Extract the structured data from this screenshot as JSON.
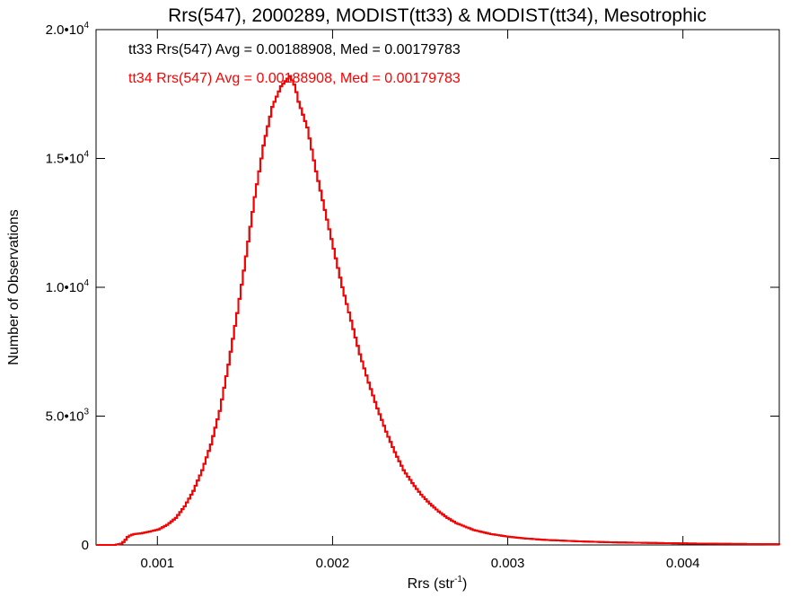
{
  "chart_data": {
    "type": "histogram",
    "title": "Rrs(547), 2000289, MODIST(tt33) & MODIST(tt34), Mesotrophic",
    "xlabel": "Rrs (str",
    "xlabel_sup": "-1",
    "xlabel_suffix": ")",
    "ylabel": "Number of Observations",
    "xlim": [
      0.00065,
      0.00455
    ],
    "ylim": [
      0,
      20000
    ],
    "x_ticks": [
      {
        "value": 0.001,
        "label": "0.001"
      },
      {
        "value": 0.002,
        "label": "0.002"
      },
      {
        "value": 0.003,
        "label": "0.003"
      },
      {
        "value": 0.004,
        "label": "0.004"
      }
    ],
    "y_ticks": [
      {
        "value": 0,
        "label": "0",
        "sup": ""
      },
      {
        "value": 5000,
        "label": "5.0•10",
        "sup": "3"
      },
      {
        "value": 10000,
        "label": "1.0•10",
        "sup": "4"
      },
      {
        "value": 15000,
        "label": "1.5•10",
        "sup": "4"
      },
      {
        "value": 20000,
        "label": "2.0•10",
        "sup": "4"
      }
    ],
    "annotations": [
      {
        "text": "tt33 Rrs(547) Avg = 0.00188908, Med = 0.00179783",
        "color": "#000000"
      },
      {
        "text": "tt34 Rrs(547) Avg = 0.00188908, Med = 0.00179783",
        "color": "#ff0000"
      }
    ],
    "series": [
      {
        "name": "tt33",
        "color": "#000000",
        "points": [
          [
            0.00065,
            0
          ],
          [
            0.00075,
            0
          ],
          [
            0.00079,
            50
          ],
          [
            0.00081,
            180
          ],
          [
            0.00083,
            350
          ],
          [
            0.00086,
            420
          ],
          [
            0.0009,
            450
          ],
          [
            0.00095,
            520
          ],
          [
            0.001,
            600
          ],
          [
            0.00105,
            780
          ],
          [
            0.0011,
            1050
          ],
          [
            0.00115,
            1500
          ],
          [
            0.0012,
            2100
          ],
          [
            0.00125,
            2900
          ],
          [
            0.0013,
            3900
          ],
          [
            0.00135,
            5200
          ],
          [
            0.0014,
            7000
          ],
          [
            0.00145,
            9000
          ],
          [
            0.0015,
            11200
          ],
          [
            0.00155,
            13500
          ],
          [
            0.0016,
            15500
          ],
          [
            0.00165,
            17000
          ],
          [
            0.0017,
            17800
          ],
          [
            0.00175,
            18200
          ],
          [
            0.00178,
            17800
          ],
          [
            0.0018,
            17200
          ],
          [
            0.00185,
            16200
          ],
          [
            0.0019,
            14500
          ],
          [
            0.00195,
            13000
          ],
          [
            0.002,
            11500
          ],
          [
            0.00205,
            10000
          ],
          [
            0.0021,
            8700
          ],
          [
            0.00215,
            7400
          ],
          [
            0.0022,
            6300
          ],
          [
            0.00225,
            5300
          ],
          [
            0.0023,
            4400
          ],
          [
            0.00235,
            3600
          ],
          [
            0.0024,
            2900
          ],
          [
            0.00245,
            2400
          ],
          [
            0.0025,
            1950
          ],
          [
            0.00255,
            1600
          ],
          [
            0.0026,
            1300
          ],
          [
            0.00265,
            1050
          ],
          [
            0.0027,
            850
          ],
          [
            0.0028,
            580
          ],
          [
            0.0029,
            420
          ],
          [
            0.003,
            320
          ],
          [
            0.0031,
            250
          ],
          [
            0.0032,
            200
          ],
          [
            0.0034,
            140
          ],
          [
            0.0036,
            100
          ],
          [
            0.0038,
            80
          ],
          [
            0.004,
            60
          ],
          [
            0.0042,
            45
          ],
          [
            0.0044,
            35
          ],
          [
            0.00455,
            30
          ]
        ]
      },
      {
        "name": "tt34",
        "color": "#ff0000",
        "points": [
          [
            0.00065,
            0
          ],
          [
            0.00075,
            0
          ],
          [
            0.00079,
            50
          ],
          [
            0.00081,
            180
          ],
          [
            0.00083,
            350
          ],
          [
            0.00086,
            420
          ],
          [
            0.0009,
            450
          ],
          [
            0.00095,
            520
          ],
          [
            0.001,
            600
          ],
          [
            0.00105,
            780
          ],
          [
            0.0011,
            1050
          ],
          [
            0.00115,
            1500
          ],
          [
            0.0012,
            2100
          ],
          [
            0.00125,
            2900
          ],
          [
            0.0013,
            3900
          ],
          [
            0.00135,
            5200
          ],
          [
            0.0014,
            7000
          ],
          [
            0.00145,
            9000
          ],
          [
            0.0015,
            11200
          ],
          [
            0.00155,
            13500
          ],
          [
            0.0016,
            15500
          ],
          [
            0.00165,
            17000
          ],
          [
            0.0017,
            17800
          ],
          [
            0.00175,
            18200
          ],
          [
            0.00178,
            17800
          ],
          [
            0.0018,
            17200
          ],
          [
            0.00185,
            16200
          ],
          [
            0.0019,
            14500
          ],
          [
            0.00195,
            13000
          ],
          [
            0.002,
            11500
          ],
          [
            0.00205,
            10000
          ],
          [
            0.0021,
            8700
          ],
          [
            0.00215,
            7400
          ],
          [
            0.0022,
            6300
          ],
          [
            0.00225,
            5300
          ],
          [
            0.0023,
            4400
          ],
          [
            0.00235,
            3600
          ],
          [
            0.0024,
            2900
          ],
          [
            0.00245,
            2400
          ],
          [
            0.0025,
            1950
          ],
          [
            0.00255,
            1600
          ],
          [
            0.0026,
            1300
          ],
          [
            0.00265,
            1050
          ],
          [
            0.0027,
            850
          ],
          [
            0.0028,
            580
          ],
          [
            0.0029,
            420
          ],
          [
            0.003,
            320
          ],
          [
            0.0031,
            250
          ],
          [
            0.0032,
            200
          ],
          [
            0.0034,
            140
          ],
          [
            0.0036,
            100
          ],
          [
            0.0038,
            80
          ],
          [
            0.004,
            60
          ],
          [
            0.0042,
            45
          ],
          [
            0.0044,
            35
          ],
          [
            0.00455,
            30
          ]
        ]
      }
    ]
  }
}
